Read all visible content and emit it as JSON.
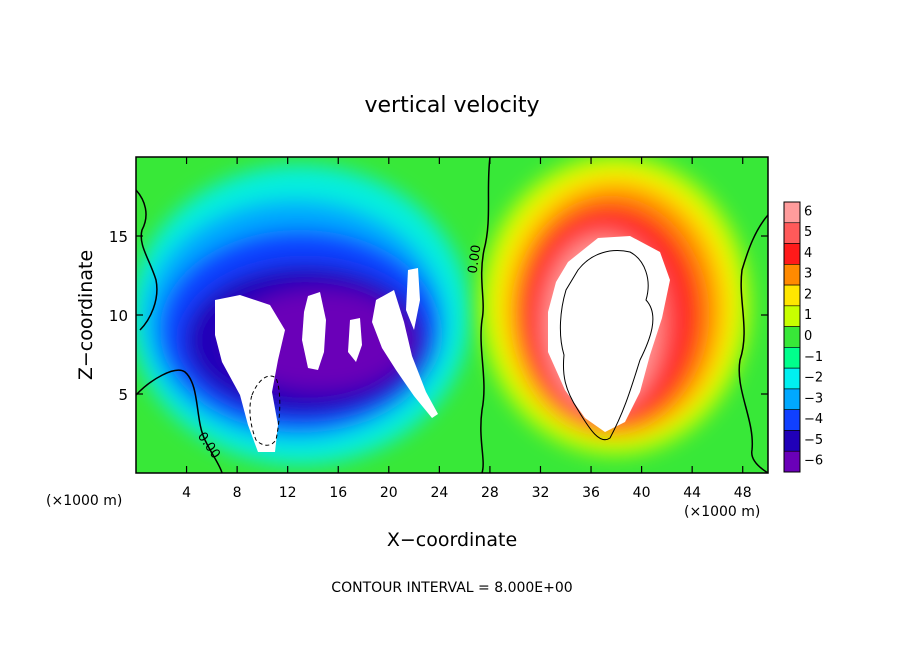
{
  "chart_data": {
    "type": "heatmap",
    "title": "vertical velocity",
    "xlabel": "X−coordinate",
    "ylabel": "Z−coordinate",
    "x_unit_left": "(×1000 m)",
    "x_unit_right": "(×1000 m)",
    "footer": "CONTOUR INTERVAL = 8.000E+00",
    "xlim": [
      0,
      50
    ],
    "ylim": [
      0,
      20
    ],
    "x_ticks": [
      4,
      8,
      12,
      16,
      20,
      24,
      28,
      32,
      36,
      40,
      44,
      48
    ],
    "x_tick_labels": [
      "4",
      "8",
      "12",
      "16",
      "20",
      "24",
      "28",
      "32",
      "36",
      "40",
      "44",
      "48"
    ],
    "y_ticks": [
      5,
      10,
      15
    ],
    "y_tick_labels": [
      "5",
      "10",
      "15"
    ],
    "contour_labels": [
      {
        "text": "0.00",
        "x": 27.1,
        "y": 13.5,
        "angle": -82
      },
      {
        "text": "0.00",
        "x": 5.5,
        "y": 1.6,
        "angle": 55
      }
    ],
    "colorbar": {
      "levels": [
        6,
        5,
        4,
        3,
        2,
        1,
        0,
        -1,
        -2,
        -3,
        -4,
        -5,
        -6
      ],
      "labels": [
        "6",
        "5",
        "4",
        "3",
        "2",
        "1",
        "0",
        "−1",
        "−2",
        "−3",
        "−4",
        "−5",
        "−6"
      ],
      "colors": [
        "#ff9c9c",
        "#ff5a5a",
        "#ff1a1a",
        "#ff8a00",
        "#ffe600",
        "#c8ff00",
        "#38e838",
        "#00ff8c",
        "#00f0f0",
        "#00a8ff",
        "#1040ff",
        "#2000b8",
        "#6a00b8"
      ]
    },
    "updraft_core": {
      "x": 37.5,
      "z": 10.0,
      "wmax": 6
    },
    "downdraft_cores": [
      {
        "x": 8.5,
        "z": 8.0,
        "wmin": -6
      },
      {
        "x": 14.5,
        "z": 9.0,
        "wmin": -6
      },
      {
        "x": 19.5,
        "z": 8.0,
        "wmin": -6
      }
    ]
  }
}
